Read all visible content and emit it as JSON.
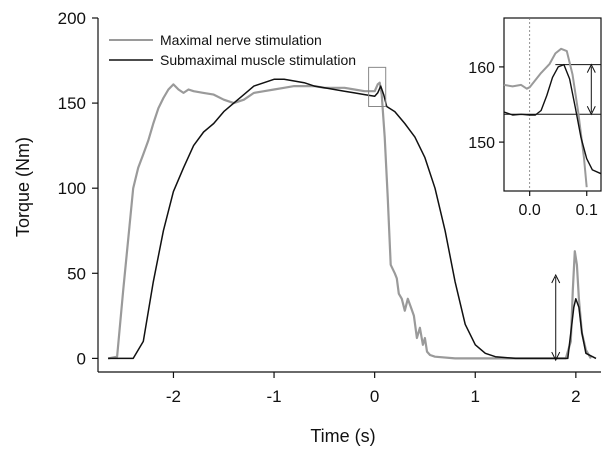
{
  "chart_data": {
    "type": "line",
    "xlabel": "Time (s)",
    "ylabel": "Torque (Nm)",
    "xlim": [
      -2.75,
      2.25
    ],
    "ylim": [
      -8,
      200
    ],
    "xticks": [
      "-2",
      "-1",
      "0",
      "1",
      "2"
    ],
    "xtick_values": [
      -2,
      -1,
      0,
      1,
      2
    ],
    "yticks": [
      "0",
      "50",
      "100",
      "150",
      "200"
    ],
    "ytick_values": [
      0,
      50,
      100,
      150,
      200
    ],
    "grid": false,
    "legend_position": "top-left",
    "series": [
      {
        "name": "Maximal nerve stimulation",
        "color": "#9a9a9a",
        "x": [
          -2.65,
          -2.56,
          -2.5,
          -2.45,
          -2.4,
          -2.35,
          -2.3,
          -2.25,
          -2.2,
          -2.15,
          -2.1,
          -2.05,
          -2.0,
          -1.95,
          -1.9,
          -1.85,
          -1.8,
          -1.7,
          -1.6,
          -1.5,
          -1.4,
          -1.3,
          -1.2,
          -1.1,
          -1.0,
          -0.9,
          -0.8,
          -0.7,
          -0.6,
          -0.5,
          -0.4,
          -0.3,
          -0.2,
          -0.1,
          0.0,
          0.03,
          0.05,
          0.07,
          0.1,
          0.13,
          0.16,
          0.2,
          0.22,
          0.24,
          0.27,
          0.3,
          0.33,
          0.36,
          0.39,
          0.42,
          0.45,
          0.48,
          0.5,
          0.52,
          0.55,
          0.6,
          0.8,
          1.0,
          1.2,
          1.5,
          1.8,
          1.9,
          1.95,
          1.97,
          1.99,
          2.01,
          2.03,
          2.06,
          2.1,
          2.15
        ],
        "y": [
          0,
          1,
          40,
          70,
          100,
          112,
          120,
          128,
          138,
          147,
          153,
          158,
          161,
          158,
          156,
          158,
          157,
          156,
          155,
          152,
          150,
          152,
          156,
          157,
          158,
          159,
          160,
          160,
          160,
          159,
          159,
          159,
          158,
          157,
          157,
          161,
          162,
          155,
          130,
          95,
          55,
          50,
          47,
          38,
          35,
          28,
          35,
          30,
          25,
          12,
          18,
          8,
          12,
          4,
          2,
          1,
          0,
          0,
          0,
          0,
          0,
          0,
          10,
          40,
          63,
          55,
          35,
          15,
          5,
          0
        ]
      },
      {
        "name": "Submaximal muscle stimulation",
        "color": "#111111",
        "x": [
          -2.65,
          -2.5,
          -2.4,
          -2.3,
          -2.2,
          -2.1,
          -2.0,
          -1.9,
          -1.8,
          -1.7,
          -1.6,
          -1.5,
          -1.4,
          -1.3,
          -1.2,
          -1.1,
          -1.0,
          -0.9,
          -0.8,
          -0.7,
          -0.6,
          -0.5,
          -0.4,
          -0.3,
          -0.2,
          -0.1,
          0.0,
          0.03,
          0.06,
          0.09,
          0.12,
          0.2,
          0.3,
          0.4,
          0.5,
          0.6,
          0.7,
          0.8,
          0.9,
          1.0,
          1.1,
          1.2,
          1.4,
          1.6,
          1.8,
          1.92,
          1.95,
          1.98,
          2.0,
          2.03,
          2.06,
          2.1,
          2.2
        ],
        "y": [
          0,
          0,
          0,
          10,
          45,
          75,
          98,
          112,
          125,
          133,
          138,
          145,
          150,
          155,
          160,
          162,
          164,
          164,
          163,
          162,
          160,
          159,
          158,
          157,
          156,
          155,
          154,
          156,
          160,
          155,
          148,
          145,
          138,
          130,
          118,
          100,
          75,
          45,
          20,
          8,
          3,
          1,
          0,
          0,
          0,
          0,
          15,
          30,
          35,
          30,
          15,
          3,
          0
        ]
      }
    ],
    "inset": {
      "yticks": [
        "150",
        "160"
      ],
      "ytick_values": [
        150,
        160
      ],
      "xticks": [
        "0.0",
        "0.1"
      ],
      "xtick_values": [
        0.0,
        0.1
      ],
      "xlim": [
        -0.045,
        0.125
      ],
      "ylim": [
        143.5,
        166.5
      ],
      "series": [
        {
          "name": "Maximal nerve stimulation",
          "color": "#9a9a9a",
          "x": [
            -0.045,
            -0.03,
            -0.015,
            -0.005,
            0.0,
            0.02,
            0.035,
            0.045,
            0.055,
            0.065,
            0.075,
            0.085,
            0.095,
            0.1
          ],
          "y": [
            157.6,
            157.4,
            157.6,
            157.1,
            157.3,
            159.2,
            160.4,
            161.8,
            162.4,
            162.1,
            159.0,
            154.0,
            148.0,
            144.0
          ]
        },
        {
          "name": "Submaximal muscle stimulation",
          "color": "#111111",
          "x": [
            -0.045,
            -0.03,
            -0.015,
            0.0,
            0.01,
            0.02,
            0.03,
            0.04,
            0.05,
            0.06,
            0.07,
            0.08,
            0.09,
            0.1,
            0.11,
            0.125
          ],
          "y": [
            154.0,
            153.6,
            153.7,
            153.6,
            153.6,
            154.2,
            156.2,
            158.6,
            160.0,
            160.3,
            158.4,
            154.6,
            150.6,
            147.8,
            146.3,
            145.8
          ]
        }
      ]
    }
  }
}
